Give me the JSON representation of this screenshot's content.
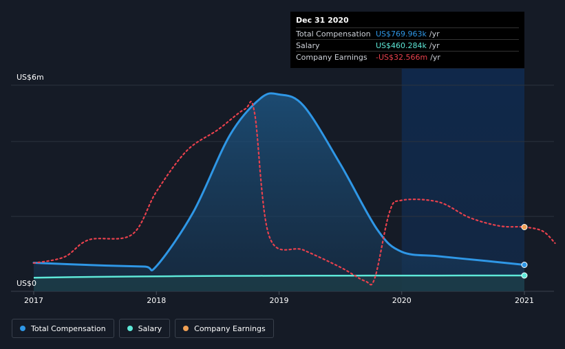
{
  "chart_data": {
    "type": "line",
    "y_axis": {
      "top_label": "US$6m",
      "bottom_label": "US$0",
      "ylim": [
        0,
        6000
      ]
    },
    "x_ticks": [
      "2017",
      "2018",
      "2019",
      "2020",
      "2021"
    ],
    "xlim": [
      2017.0,
      2021.25
    ],
    "series": [
      {
        "name": "Total Compensation",
        "color": "#2f97e6",
        "unit": "US$k",
        "points": [
          [
            2017.0,
            830
          ],
          [
            2017.5,
            760
          ],
          [
            2017.9,
            720
          ],
          [
            2018.0,
            730
          ],
          [
            2018.3,
            2300
          ],
          [
            2018.6,
            4550
          ],
          [
            2018.85,
            5620
          ],
          [
            2019.0,
            5730
          ],
          [
            2019.2,
            5400
          ],
          [
            2019.5,
            3700
          ],
          [
            2019.8,
            1800
          ],
          [
            2020.0,
            1150
          ],
          [
            2020.3,
            1020
          ],
          [
            2020.7,
            880
          ],
          [
            2021.0,
            770
          ]
        ]
      },
      {
        "name": "Salary",
        "color": "#5ee8d8",
        "unit": "US$k",
        "points": [
          [
            2017.0,
            395
          ],
          [
            2017.5,
            420
          ],
          [
            2018.0,
            435
          ],
          [
            2018.5,
            448
          ],
          [
            2019.0,
            452
          ],
          [
            2019.5,
            455
          ],
          [
            2020.0,
            458
          ],
          [
            2020.5,
            459
          ],
          [
            2021.0,
            460
          ]
        ]
      },
      {
        "name": "Company Earnings",
        "color": "#e8414d",
        "dashed": true,
        "unit": "relative",
        "points": [
          [
            2017.0,
            820
          ],
          [
            2017.25,
            1000
          ],
          [
            2017.45,
            1500
          ],
          [
            2017.8,
            1650
          ],
          [
            2018.0,
            2900
          ],
          [
            2018.25,
            4100
          ],
          [
            2018.5,
            4700
          ],
          [
            2018.72,
            5300
          ],
          [
            2018.8,
            5200
          ],
          [
            2018.92,
            1600
          ],
          [
            2019.2,
            1200
          ],
          [
            2019.5,
            700
          ],
          [
            2019.7,
            300
          ],
          [
            2019.78,
            380
          ],
          [
            2019.9,
            2300
          ],
          [
            2020.0,
            2650
          ],
          [
            2020.3,
            2600
          ],
          [
            2020.55,
            2150
          ],
          [
            2020.8,
            1900
          ],
          [
            2021.0,
            1870
          ],
          [
            2021.15,
            1750
          ],
          [
            2021.25,
            1400
          ]
        ]
      }
    ],
    "highlight_range": [
      2020.0,
      2021.0
    ],
    "tooltip": {
      "date": "Dec 31 2020",
      "rows": [
        {
          "name": "Total Compensation",
          "value": "US$769.963k",
          "unit": "/yr",
          "color": "#2f97e6"
        },
        {
          "name": "Salary",
          "value": "US$460.284k",
          "unit": "/yr",
          "color": "#5ee8d8"
        },
        {
          "name": "Company Earnings",
          "value": "-US$32.566m",
          "unit": "/yr",
          "color": "#e8414d"
        }
      ]
    },
    "legend": [
      {
        "name": "Total Compensation",
        "color": "#2f97e6"
      },
      {
        "name": "Salary",
        "color": "#5ee8d8"
      },
      {
        "name": "Company Earnings",
        "color": "#f0a054"
      }
    ],
    "grid": true
  }
}
